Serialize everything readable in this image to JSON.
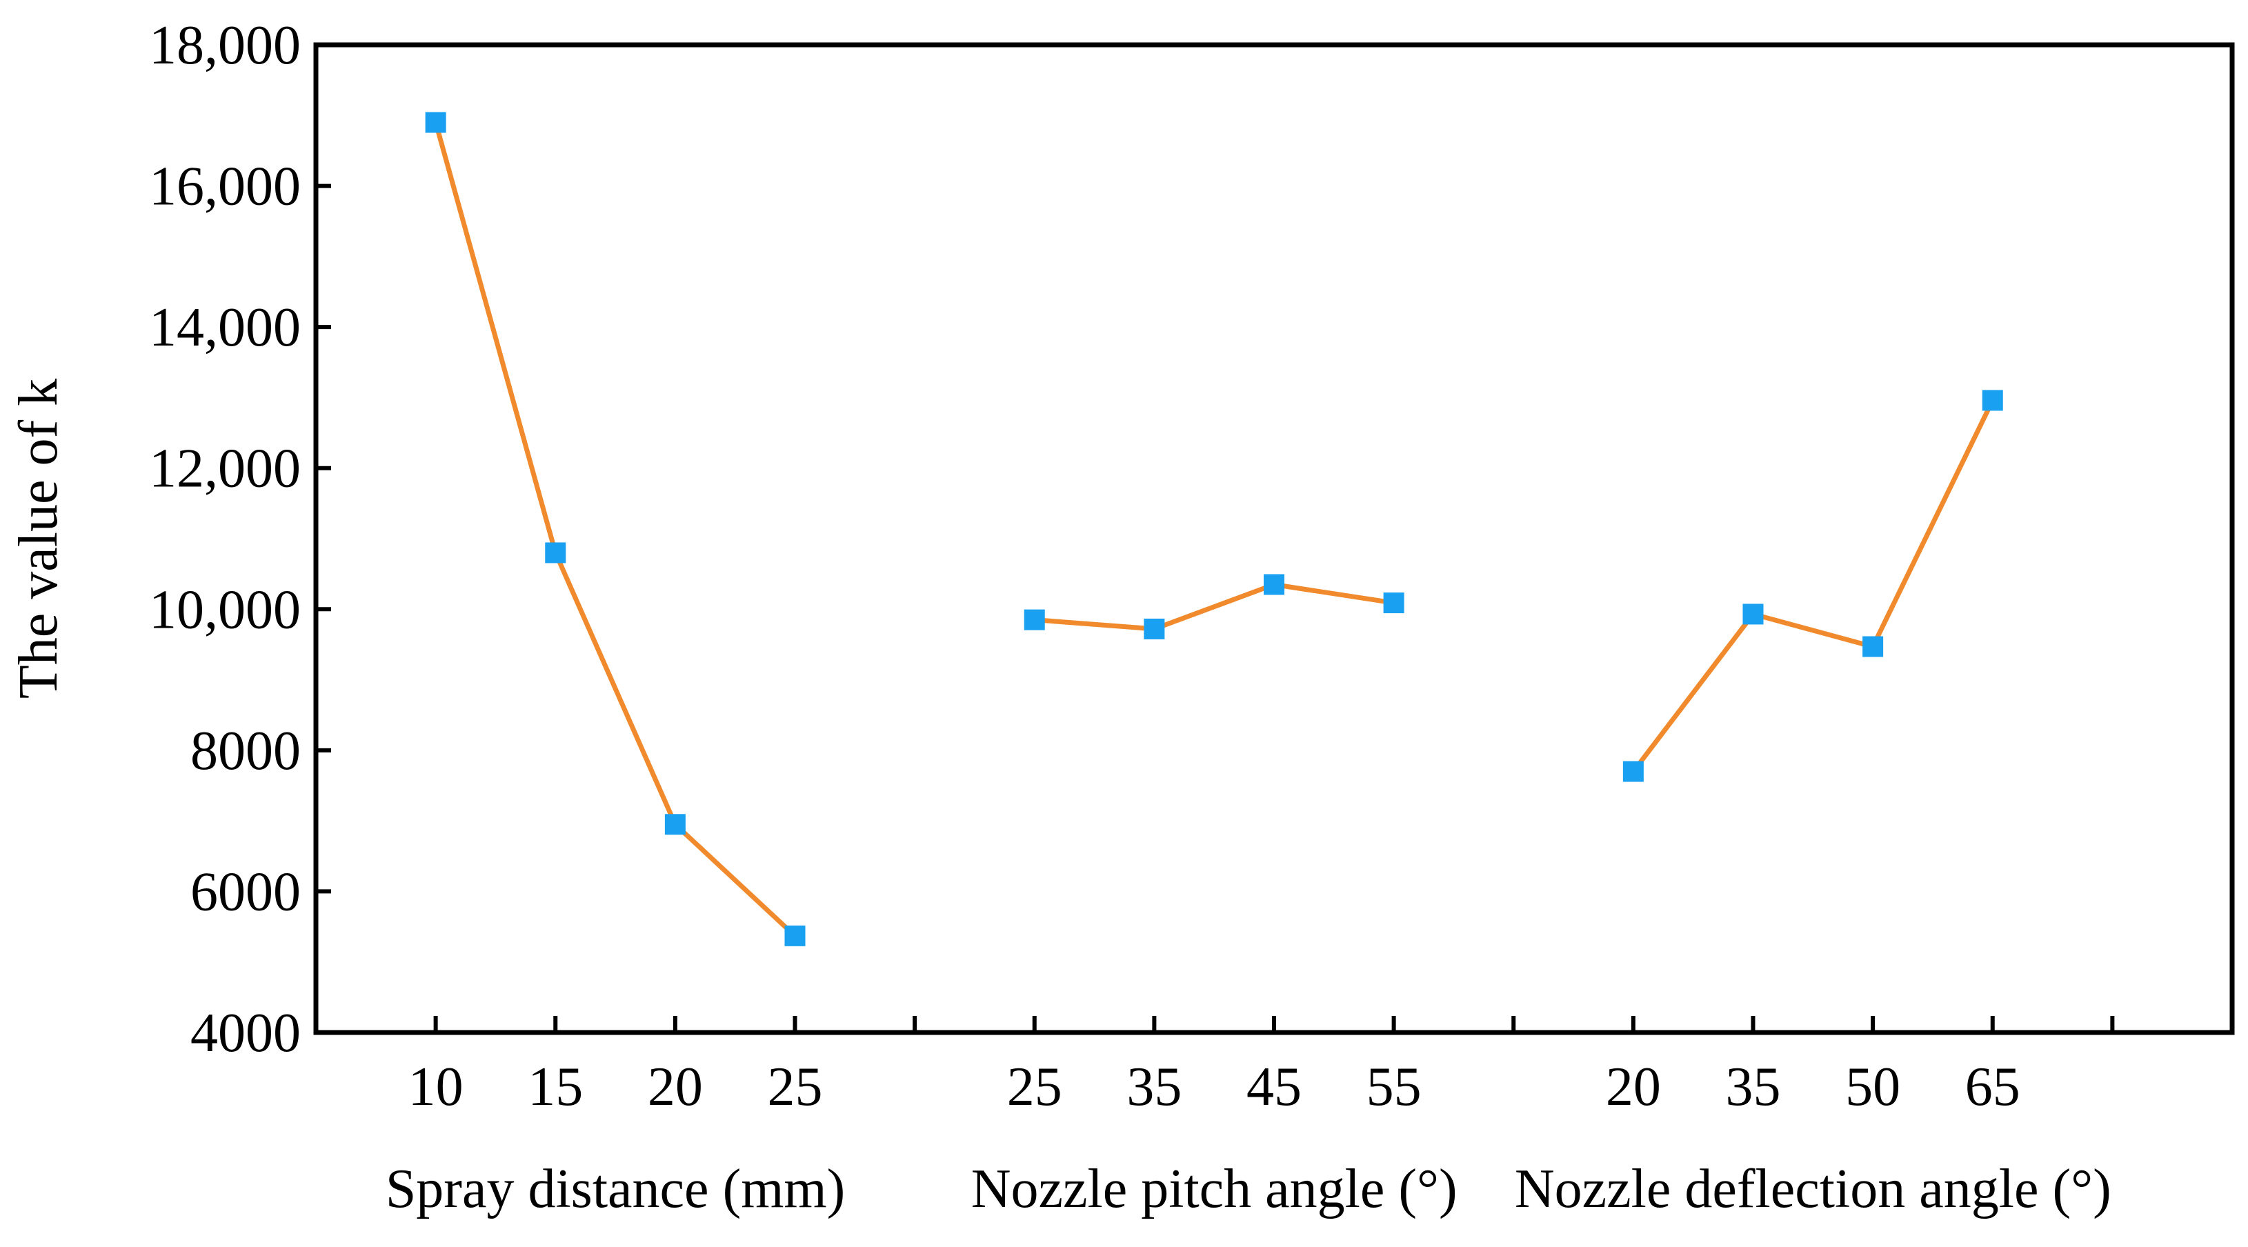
{
  "chart_data": {
    "type": "line",
    "title": "",
    "ylabel": "The value of k",
    "ylim": [
      4000,
      18000
    ],
    "y_ticks": [
      4000,
      6000,
      8000,
      10000,
      12000,
      14000,
      16000,
      18000
    ],
    "y_tick_labels": [
      "4000",
      "6000",
      "8000",
      "10,000",
      "12,000",
      "14,000",
      "16,000",
      "18,000"
    ],
    "x_slots": 15,
    "line_color": "#F08A2C",
    "marker_color": "#1AA0F0",
    "groups": [
      {
        "name": "Spray distance (mm)",
        "categories": [
          "10",
          "15",
          "20",
          "25"
        ],
        "values": [
          16900,
          10800,
          6950,
          5370
        ]
      },
      {
        "name": "Nozzle pitch angle (°)",
        "categories": [
          "25",
          "35",
          "45",
          "55"
        ],
        "values": [
          9850,
          9720,
          10350,
          10090
        ]
      },
      {
        "name": "Nozzle deflection angle (°)",
        "categories": [
          "20",
          "35",
          "50",
          "65"
        ],
        "values": [
          7700,
          9930,
          9470,
          12960
        ]
      }
    ]
  }
}
